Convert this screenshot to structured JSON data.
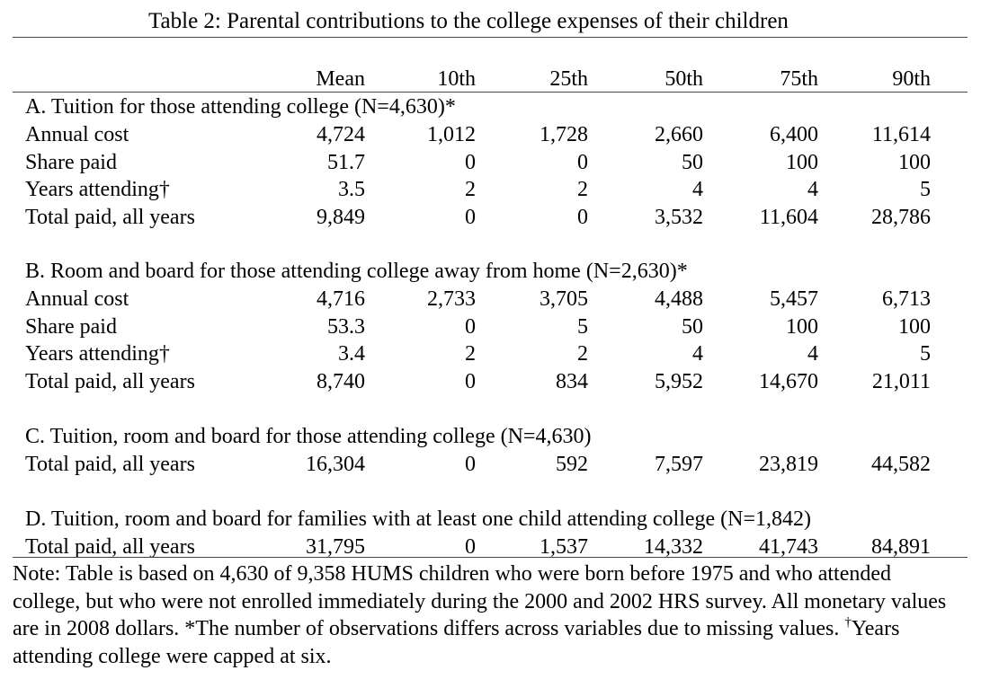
{
  "title": "Table 2: Parental contributions to the college expenses of their children",
  "columns": [
    "Mean",
    "10th",
    "25th",
    "50th",
    "75th",
    "90th"
  ],
  "sections": [
    {
      "heading": "A. Tuition for those attending college (N=4,630)*",
      "rows": [
        {
          "label": "Annual cost",
          "values": [
            "4,724",
            "1,012",
            "1,728",
            "2,660",
            "6,400",
            "11,614"
          ]
        },
        {
          "label": "Share paid",
          "values": [
            "51.7",
            "0",
            "0",
            "50",
            "100",
            "100"
          ]
        },
        {
          "label": "Years attending†",
          "values": [
            "3.5",
            "2",
            "2",
            "4",
            "4",
            "5"
          ]
        },
        {
          "label": "Total paid, all years",
          "values": [
            "9,849",
            "0",
            "0",
            "3,532",
            "11,604",
            "28,786"
          ]
        }
      ]
    },
    {
      "heading": "B. Room and board for those attending college away from home (N=2,630)*",
      "rows": [
        {
          "label": "Annual cost",
          "values": [
            "4,716",
            "2,733",
            "3,705",
            "4,488",
            "5,457",
            "6,713"
          ]
        },
        {
          "label": "Share paid",
          "values": [
            "53.3",
            "0",
            "5",
            "50",
            "100",
            "100"
          ]
        },
        {
          "label": "Years attending†",
          "values": [
            "3.4",
            "2",
            "2",
            "4",
            "4",
            "5"
          ]
        },
        {
          "label": "Total paid, all years",
          "values": [
            "8,740",
            "0",
            "834",
            "5,952",
            "14,670",
            "21,011"
          ]
        }
      ]
    },
    {
      "heading": "C. Tuition, room and board for those attending college (N=4,630)",
      "rows": [
        {
          "label": "Total paid, all years",
          "values": [
            "16,304",
            "0",
            "592",
            "7,597",
            "23,819",
            "44,582"
          ]
        }
      ]
    },
    {
      "heading": "D. Tuition, room and board for families with at least one child attending college (N=1,842)",
      "rows": [
        {
          "label": "Total paid, all years",
          "values": [
            "31,795",
            "0",
            "1,537",
            "14,332",
            "41,743",
            "84,891"
          ]
        }
      ]
    }
  ],
  "note": {
    "text": "Note: Table is based on 4,630 of 9,358 HUMS children who were born before 1975 and who attended college, but who were not enrolled immediately during the 2000 and 2002 HRS survey. All monetary values are in 2008 dollars. *The number of observations differs across variables due to missing values.",
    "dagger": "†",
    "footnote": "Years attending college were capped at six."
  }
}
